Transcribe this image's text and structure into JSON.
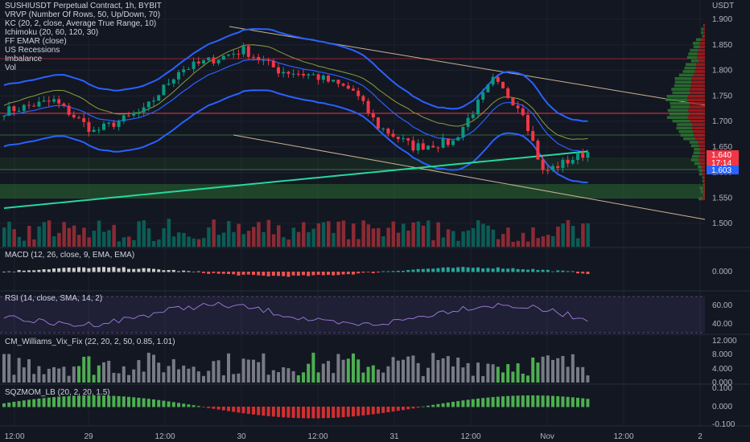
{
  "symbol_line": "SUSHIUSDT Perpetual Contract, 1h, BYBIT",
  "indicators_main": [
    "VRVP (Number Of Rows, 50, Up/Down, 70)",
    "KC (20, 2, close, Average True Range, 10)",
    "Ichimoku (20, 60, 120, 30)",
    "FF EMAR (close)",
    "US Recessions",
    "Imbalance",
    "Vol"
  ],
  "currency": "USDT",
  "price_ticks": [
    "1.900",
    "1.850",
    "1.800",
    "1.750",
    "1.700",
    "1.650",
    "1.600",
    "1.550",
    "1.500"
  ],
  "price_labels": [
    {
      "text": "1.640",
      "bg": "#f23645"
    },
    {
      "text": "17:14",
      "bg": "#f23645"
    },
    {
      "text": "1.603",
      "bg": "#2962ff"
    }
  ],
  "panes": {
    "macd": {
      "title": "MACD (12, 26, close, 9, EMA, EMA)",
      "ticks": [
        "0.000"
      ]
    },
    "rsi": {
      "title": "RSI (14, close, SMA, 14, 2)",
      "ticks": [
        "60.00",
        "40.00"
      ]
    },
    "vix": {
      "title": "CM_Williams_Vix_Fix (22, 20, 2, 50, 0.85, 1.01)",
      "ticks": [
        "12.000",
        "8.000",
        "4.000",
        "0.000"
      ]
    },
    "sqz": {
      "title": "SQZMOM_LB (20, 2, 20, 1.5)",
      "ticks": [
        "0.100",
        "0.000",
        "-0.100"
      ]
    }
  },
  "time_ticks": [
    "12:00",
    "29",
    "12:00",
    "30",
    "12:00",
    "31",
    "12:00",
    "Nov",
    "12:00",
    "2"
  ],
  "colors": {
    "bg": "#131722",
    "up": "#089981",
    "down": "#f23645",
    "keltner": "#2962ff",
    "ema": "#26d7a0",
    "grid": "#1e222d",
    "volume_up": "#0b5c55",
    "volume_down": "#8a2b34"
  }
}
